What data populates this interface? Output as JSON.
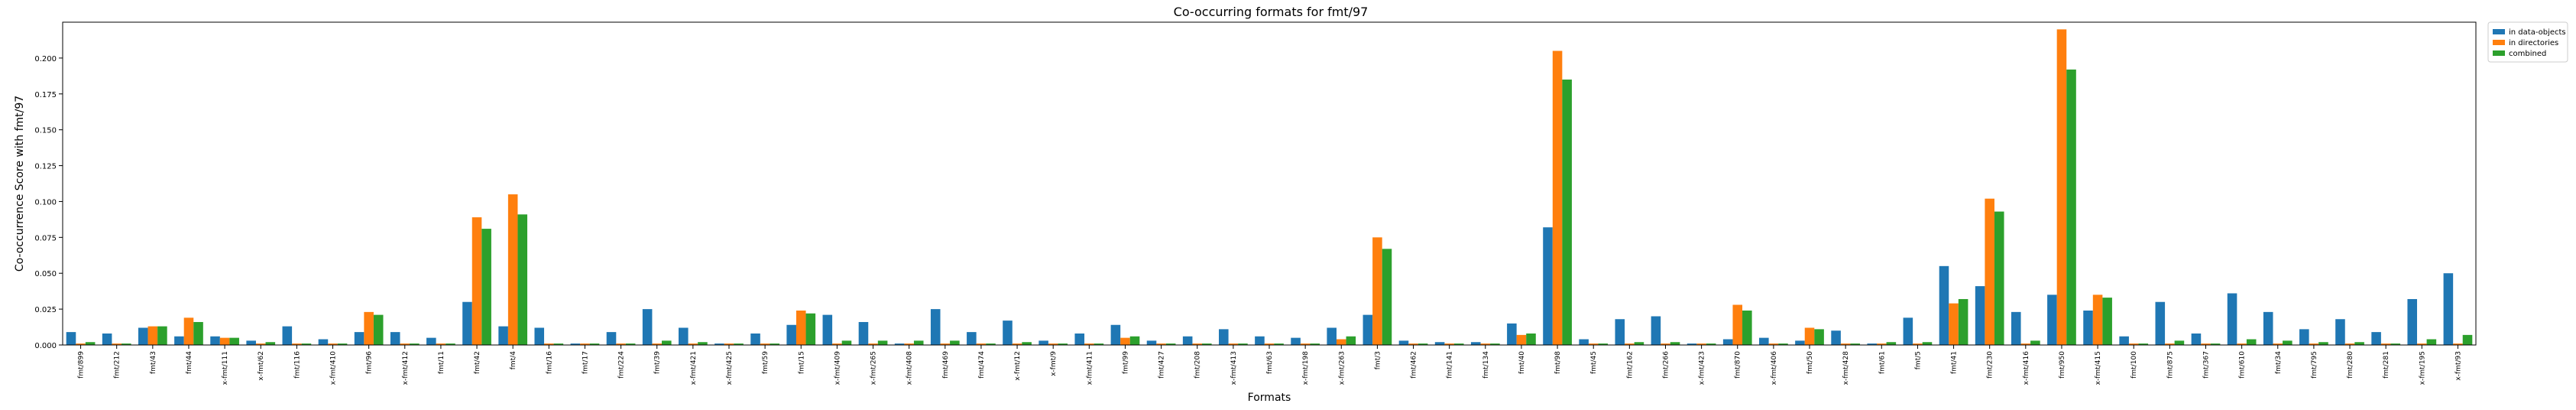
{
  "chart_data": {
    "type": "bar",
    "title": "Co-occurring formats for fmt/97",
    "xlabel": "Formats",
    "ylabel": "Co-occurrence Score with fmt/97",
    "ylim": [
      0,
      0.225
    ],
    "yticks": [
      "0.000",
      "0.025",
      "0.050",
      "0.075",
      "0.100",
      "0.125",
      "0.150",
      "0.175",
      "0.200"
    ],
    "grid": false,
    "legend_position": "upper-right-outside",
    "colors": [
      "#1f77b4",
      "#ff7f0e",
      "#2ca02c"
    ],
    "categories": [
      "fmt/899",
      "fmt/212",
      "fmt/43",
      "fmt/44",
      "x-fmt/111",
      "x-fmt/62",
      "fmt/116",
      "x-fmt/410",
      "fmt/96",
      "x-fmt/412",
      "fmt/11",
      "fmt/42",
      "fmt/4",
      "fmt/16",
      "fmt/17",
      "fmt/224",
      "fmt/39",
      "x-fmt/421",
      "x-fmt/425",
      "fmt/59",
      "fmt/15",
      "x-fmt/409",
      "x-fmt/265",
      "x-fmt/408",
      "fmt/469",
      "fmt/474",
      "x-fmt/12",
      "x-fmt/9",
      "x-fmt/411",
      "fmt/99",
      "fmt/427",
      "fmt/208",
      "x-fmt/413",
      "fmt/63",
      "x-fmt/198",
      "x-fmt/263",
      "fmt/3",
      "fmt/462",
      "fmt/141",
      "fmt/134",
      "fmt/40",
      "fmt/98",
      "fmt/45",
      "fmt/162",
      "fmt/266",
      "x-fmt/423",
      "fmt/870",
      "x-fmt/406",
      "fmt/50",
      "x-fmt/428",
      "fmt/61",
      "fmt/5",
      "fmt/41",
      "fmt/230",
      "x-fmt/416",
      "fmt/950",
      "x-fmt/415",
      "fmt/100",
      "fmt/875",
      "fmt/367",
      "fmt/610",
      "fmt/34",
      "fmt/795",
      "fmt/280",
      "fmt/281",
      "x-fmt/195",
      "x-fmt/93"
    ],
    "series": [
      {
        "name": "in data-objects",
        "values": [
          0.009,
          0.008,
          0.012,
          0.006,
          0.006,
          0.003,
          0.013,
          0.004,
          0.009,
          0.009,
          0.005,
          0.03,
          0.013,
          0.012,
          0.001,
          0.009,
          0.025,
          0.012,
          0.001,
          0.008,
          0.014,
          0.021,
          0.016,
          0.001,
          0.025,
          0.009,
          0.017,
          0.003,
          0.008,
          0.014,
          0.003,
          0.006,
          0.011,
          0.006,
          0.005,
          0.012,
          0.021,
          0.003,
          0.002,
          0.002,
          0.015,
          0.082,
          0.004,
          0.018,
          0.02,
          0.001,
          0.004,
          0.005,
          0.003,
          0.01,
          0.001,
          0.019,
          0.055,
          0.041,
          0.023,
          0.035,
          0.024,
          0.006,
          0.03,
          0.008,
          0.036,
          0.023,
          0.011,
          0.018,
          0.009,
          0.032,
          0.05
        ]
      },
      {
        "name": "in directories",
        "values": [
          0.001,
          0.001,
          0.013,
          0.019,
          0.005,
          0.001,
          0.001,
          0.001,
          0.023,
          0.001,
          0.001,
          0.089,
          0.105,
          0.001,
          0.001,
          0.001,
          0.001,
          0.001,
          0.001,
          0.001,
          0.024,
          0.001,
          0.001,
          0.001,
          0.001,
          0.001,
          0.001,
          0.001,
          0.001,
          0.005,
          0.001,
          0.001,
          0.001,
          0.001,
          0.001,
          0.004,
          0.075,
          0.001,
          0.001,
          0.001,
          0.007,
          0.205,
          0.001,
          0.001,
          0.001,
          0.001,
          0.028,
          0.001,
          0.012,
          0.001,
          0.001,
          0.001,
          0.029,
          0.102,
          0.001,
          0.22,
          0.035,
          0.001,
          0.001,
          0.001,
          0.001,
          0.001,
          0.001,
          0.001,
          0.001,
          0.001,
          0.001
        ]
      },
      {
        "name": "combined",
        "values": [
          0.002,
          0.001,
          0.013,
          0.016,
          0.005,
          0.002,
          0.001,
          0.001,
          0.021,
          0.001,
          0.001,
          0.081,
          0.091,
          0.001,
          0.001,
          0.001,
          0.003,
          0.002,
          0.001,
          0.001,
          0.022,
          0.003,
          0.003,
          0.003,
          0.003,
          0.001,
          0.002,
          0.001,
          0.001,
          0.006,
          0.001,
          0.001,
          0.001,
          0.001,
          0.001,
          0.006,
          0.067,
          0.001,
          0.001,
          0.001,
          0.008,
          0.185,
          0.001,
          0.002,
          0.002,
          0.001,
          0.024,
          0.001,
          0.011,
          0.001,
          0.002,
          0.002,
          0.032,
          0.093,
          0.003,
          0.192,
          0.033,
          0.001,
          0.003,
          0.001,
          0.004,
          0.003,
          0.002,
          0.002,
          0.001,
          0.004,
          0.007
        ]
      }
    ]
  }
}
